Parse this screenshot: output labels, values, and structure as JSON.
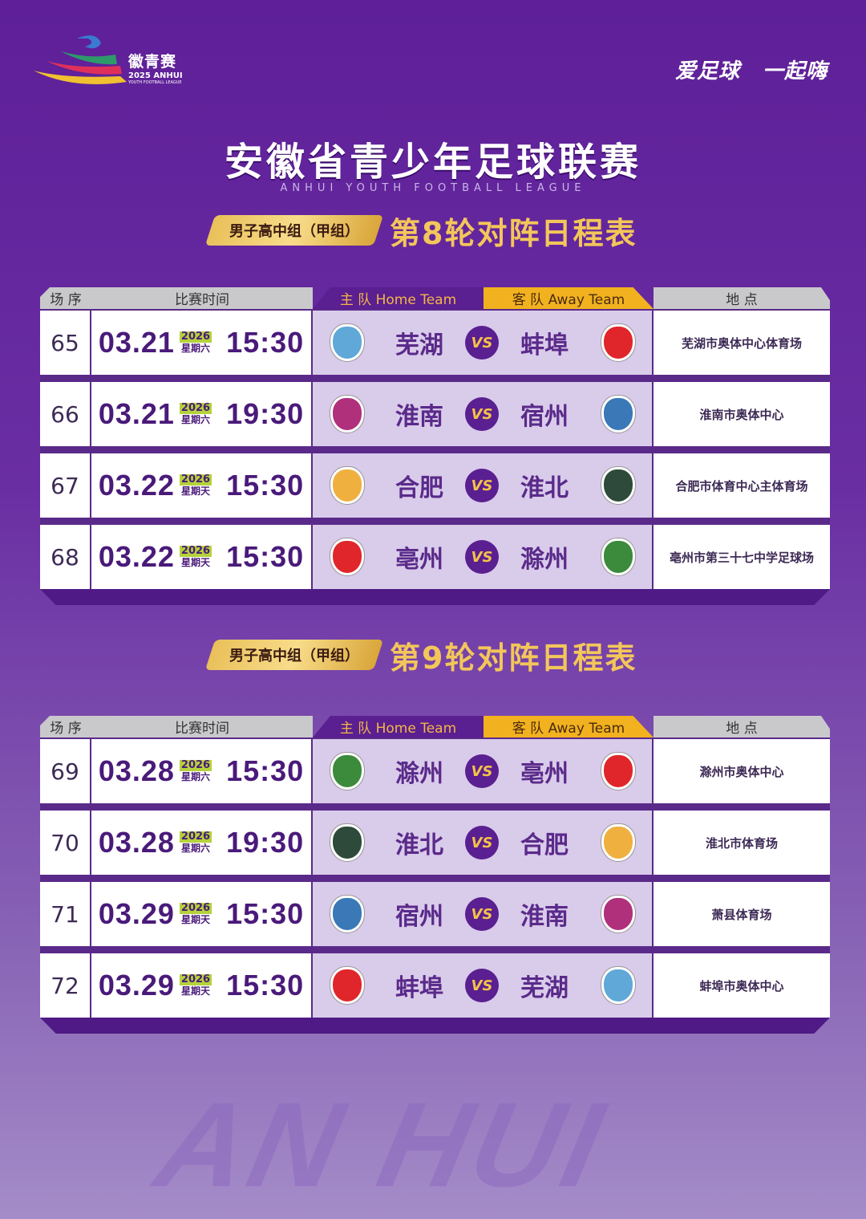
{
  "logo": {
    "cn": "徽青赛",
    "en": "2025 ANHUI",
    "sub": "YOUTH FOOTBALL LEAGUE"
  },
  "slogan": "爱足球 一起嗨",
  "title": "安徽省青少年足球联赛",
  "subtitle": "ANHUI YOUTH FOOTBALL LEAGUE",
  "table_headers": {
    "seq": "场 序",
    "time": "比赛时间",
    "home": "主 队 Home Team",
    "away": "客 队 Away Team",
    "venue": "地 点"
  },
  "watermark": "AN HUI",
  "colors": {
    "primary": "#5a1f90",
    "gold": "#f2b21f",
    "team_bg": "#d9cbea",
    "year_badge": "#b5d23c"
  },
  "rounds": [
    {
      "group": "男子高中组（甲组）",
      "title": "第8轮对阵日程表",
      "matches": [
        {
          "seq": "65",
          "date": "03.21",
          "year": "2026",
          "weekday": "星期六",
          "time": "15:30",
          "home": "芜湖",
          "vs": "VS",
          "away": "蚌埠",
          "venue": "芜湖市奥体中心体育场"
        },
        {
          "seq": "66",
          "date": "03.21",
          "year": "2026",
          "weekday": "星期六",
          "time": "19:30",
          "home": "淮南",
          "vs": "VS",
          "away": "宿州",
          "venue": "淮南市奥体中心"
        },
        {
          "seq": "67",
          "date": "03.22",
          "year": "2026",
          "weekday": "星期天",
          "time": "15:30",
          "home": "合肥",
          "vs": "VS",
          "away": "淮北",
          "venue": "合肥市体育中心主体育场"
        },
        {
          "seq": "68",
          "date": "03.22",
          "year": "2026",
          "weekday": "星期天",
          "time": "15:30",
          "home": "亳州",
          "vs": "VS",
          "away": "滁州",
          "venue": "亳州市第三十七中学足球场"
        }
      ]
    },
    {
      "group": "男子高中组（甲组）",
      "title": "第9轮对阵日程表",
      "matches": [
        {
          "seq": "69",
          "date": "03.28",
          "year": "2026",
          "weekday": "星期六",
          "time": "15:30",
          "home": "滁州",
          "vs": "VS",
          "away": "亳州",
          "venue": "滁州市奥体中心"
        },
        {
          "seq": "70",
          "date": "03.28",
          "year": "2026",
          "weekday": "星期六",
          "time": "19:30",
          "home": "淮北",
          "vs": "VS",
          "away": "合肥",
          "venue": "淮北市体育场"
        },
        {
          "seq": "71",
          "date": "03.29",
          "year": "2026",
          "weekday": "星期天",
          "time": "15:30",
          "home": "宿州",
          "vs": "VS",
          "away": "淮南",
          "venue": "萧县体育场"
        },
        {
          "seq": "72",
          "date": "03.29",
          "year": "2026",
          "weekday": "星期天",
          "time": "15:30",
          "home": "蚌埠",
          "vs": "VS",
          "away": "芜湖",
          "venue": "蚌埠市奥体中心"
        }
      ]
    }
  ],
  "crest_colors": {
    "芜湖": "#5fa8d8",
    "蚌埠": "#e0262a",
    "淮南": "#b0307c",
    "宿州": "#3a78b8",
    "合肥": "#f0b040",
    "淮北": "#2e4a3a",
    "亳州": "#e0262a",
    "滁州": "#3c8a3c"
  }
}
